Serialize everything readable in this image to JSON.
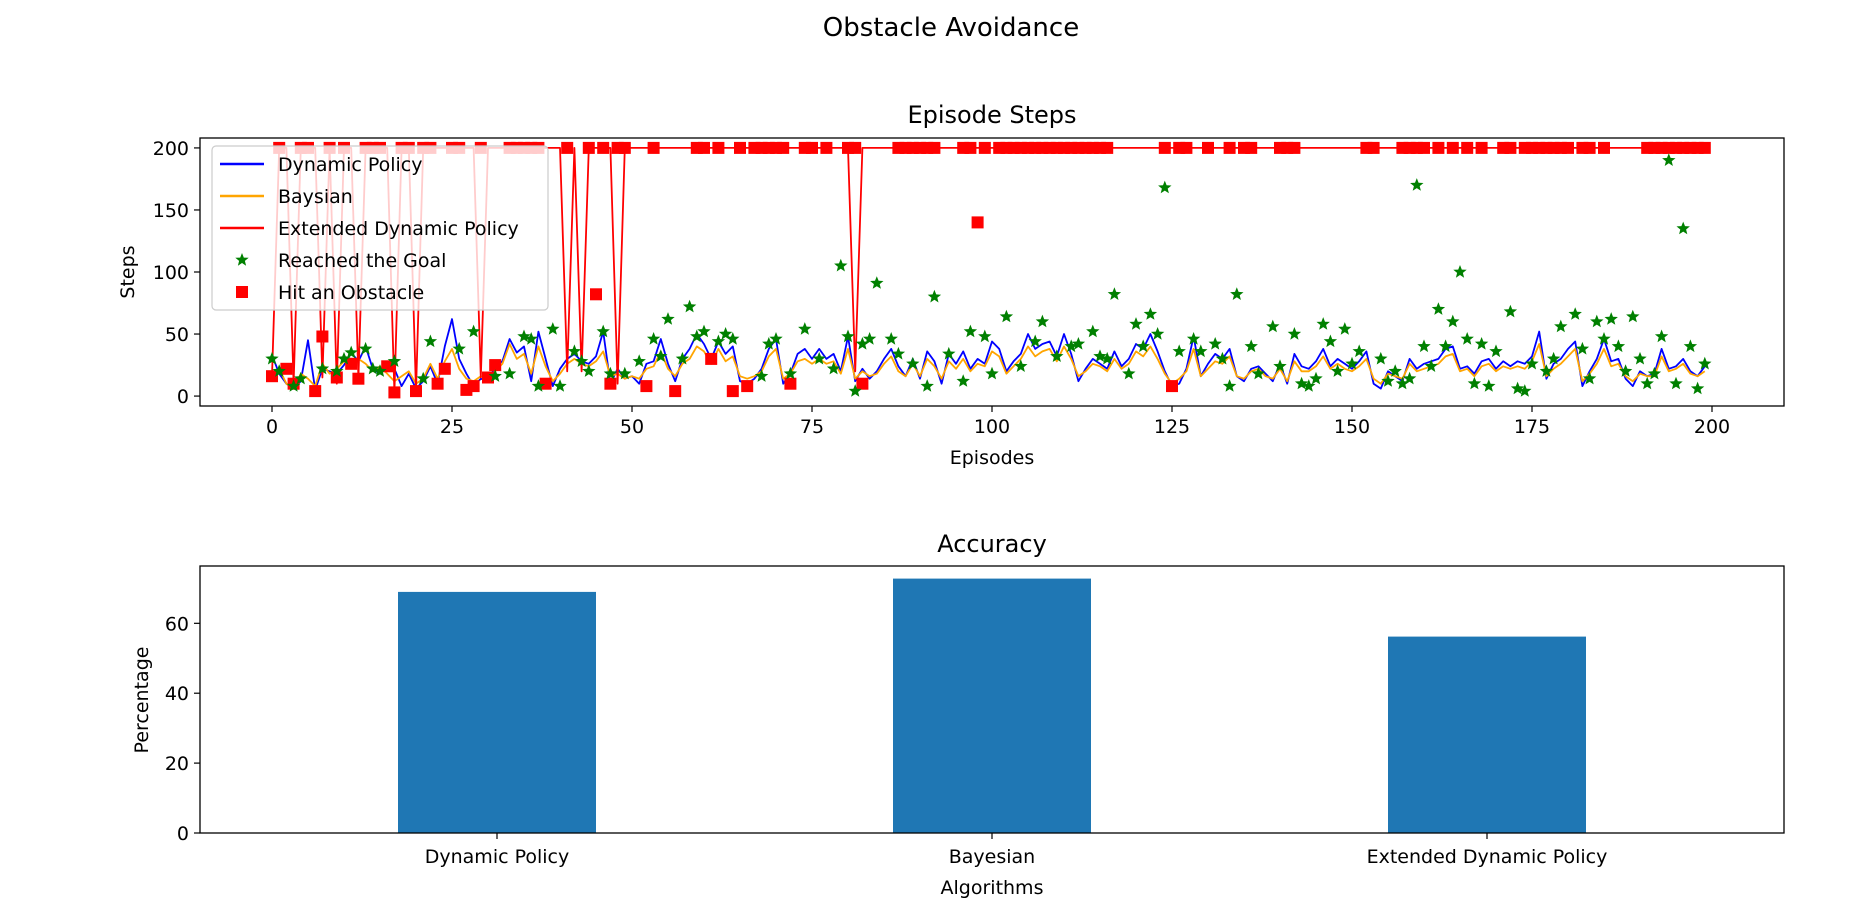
{
  "figure": {
    "suptitle": "Obstacle Avoidance"
  },
  "chart_data": [
    {
      "type": "line",
      "title": "Episode Steps",
      "xlabel": "Episodes",
      "ylabel": "Steps",
      "xlim": [
        -10,
        210
      ],
      "ylim": [
        -8,
        208
      ],
      "xticks": [
        0,
        25,
        50,
        75,
        100,
        125,
        150,
        175,
        200
      ],
      "yticks": [
        0,
        50,
        100,
        150,
        200
      ],
      "grid": false,
      "legend_position": "top-left",
      "legend": [
        {
          "label": "Dynamic Policy",
          "kind": "line",
          "color": "#0000ff"
        },
        {
          "label": "Baysian",
          "kind": "line",
          "color": "#ffa500"
        },
        {
          "label": "Extended Dynamic Policy",
          "kind": "line",
          "color": "#ff0000"
        },
        {
          "label": "Reached the Goal",
          "kind": "star",
          "color": "#008000"
        },
        {
          "label": "Hit an Obstacle",
          "kind": "square",
          "color": "#ff0000"
        }
      ],
      "series": [
        {
          "name": "Dynamic Policy",
          "color": "#0000ff",
          "values": [
            33,
            18,
            10,
            6,
            12,
            45,
            5,
            22,
            20,
            18,
            25,
            35,
            28,
            40,
            22,
            18,
            26,
            22,
            8,
            18,
            6,
            12,
            24,
            10,
            40,
            62,
            30,
            18,
            8,
            14,
            12,
            24,
            28,
            46,
            35,
            40,
            12,
            52,
            30,
            8,
            22,
            30,
            34,
            28,
            26,
            32,
            52,
            10,
            22,
            14,
            16,
            10,
            26,
            28,
            46,
            26,
            12,
            30,
            38,
            50,
            42,
            30,
            44,
            34,
            40,
            12,
            10,
            14,
            22,
            38,
            46,
            10,
            18,
            34,
            38,
            30,
            38,
            30,
            34,
            20,
            48,
            12,
            22,
            14,
            20,
            30,
            38,
            24,
            16,
            30,
            14,
            36,
            28,
            10,
            34,
            26,
            36,
            22,
            30,
            26,
            44,
            38,
            20,
            28,
            34,
            50,
            38,
            42,
            44,
            32,
            50,
            34,
            12,
            22,
            30,
            26,
            22,
            36,
            24,
            30,
            42,
            38,
            50,
            36,
            20,
            8,
            10,
            22,
            48,
            16,
            26,
            34,
            30,
            38,
            16,
            12,
            22,
            24,
            18,
            12,
            26,
            10,
            34,
            24,
            22,
            28,
            38,
            24,
            30,
            26,
            22,
            28,
            36,
            10,
            6,
            20,
            16,
            12,
            30,
            22,
            26,
            28,
            30,
            38,
            40,
            22,
            24,
            18,
            28,
            30,
            22,
            28,
            24,
            28,
            26,
            32,
            52,
            14,
            26,
            30,
            38,
            44,
            8,
            20,
            30,
            46,
            28,
            30,
            14,
            8,
            20,
            16,
            18,
            38,
            22,
            24,
            30,
            20,
            16,
            24
          ]
        },
        {
          "name": "Baysian",
          "color": "#ffa500",
          "values": [
            15,
            22,
            10,
            6,
            18,
            14,
            8,
            26,
            18,
            22,
            28,
            24,
            30,
            26,
            20,
            24,
            18,
            12,
            16,
            20,
            10,
            14,
            26,
            14,
            28,
            38,
            22,
            14,
            12,
            16,
            14,
            20,
            26,
            42,
            30,
            34,
            18,
            40,
            24,
            12,
            18,
            26,
            30,
            26,
            24,
            28,
            36,
            16,
            18,
            14,
            16,
            14,
            22,
            24,
            36,
            22,
            16,
            26,
            30,
            40,
            36,
            26,
            38,
            28,
            32,
            16,
            14,
            16,
            20,
            32,
            38,
            14,
            18,
            28,
            30,
            26,
            30,
            26,
            28,
            18,
            38,
            14,
            20,
            16,
            18,
            26,
            32,
            20,
            16,
            26,
            16,
            30,
            24,
            14,
            28,
            22,
            30,
            20,
            26,
            24,
            36,
            32,
            18,
            24,
            30,
            40,
            32,
            36,
            38,
            28,
            40,
            30,
            16,
            20,
            26,
            24,
            20,
            30,
            22,
            26,
            36,
            32,
            40,
            30,
            18,
            10,
            14,
            20,
            38,
            16,
            22,
            28,
            26,
            32,
            16,
            14,
            20,
            22,
            16,
            14,
            22,
            12,
            28,
            20,
            20,
            24,
            32,
            22,
            26,
            22,
            20,
            24,
            30,
            14,
            10,
            18,
            16,
            14,
            26,
            20,
            22,
            24,
            26,
            32,
            34,
            20,
            22,
            16,
            24,
            26,
            20,
            24,
            22,
            24,
            22,
            28,
            42,
            16,
            22,
            26,
            32,
            38,
            12,
            18,
            26,
            38,
            24,
            26,
            16,
            12,
            18,
            16,
            16,
            32,
            20,
            22,
            26,
            18,
            16,
            20
          ]
        },
        {
          "name": "Extended Dynamic Policy",
          "color": "#ff0000",
          "values": [
            16,
            200,
            200,
            10,
            200,
            200,
            200,
            15,
            200,
            10,
            200,
            200,
            15,
            200,
            200,
            200,
            200,
            3,
            200,
            200,
            4,
            200,
            200,
            200,
            200,
            200,
            200,
            200,
            200,
            15,
            200,
            200,
            200,
            200,
            200,
            200,
            200,
            200,
            200,
            200,
            200,
            20,
            200,
            20,
            200,
            200,
            200,
            200,
            10,
            200,
            200,
            200,
            200,
            200,
            200,
            200,
            200,
            200,
            200,
            200,
            200,
            200,
            200,
            200,
            200,
            200,
            200,
            200,
            200,
            200,
            200,
            200,
            200,
            200,
            200,
            200,
            200,
            200,
            200,
            200,
            200,
            20,
            200,
            200,
            200,
            200,
            200,
            200,
            200,
            200,
            200,
            200,
            200,
            200,
            200,
            200,
            200,
            200,
            200,
            200,
            200,
            200,
            200,
            200,
            200,
            200,
            200,
            200,
            200,
            200,
            200,
            200,
            200,
            200,
            200,
            200,
            200,
            200,
            200,
            200,
            200,
            200,
            200,
            200,
            200,
            200,
            200,
            200,
            200,
            200,
            200,
            200,
            200,
            200,
            200,
            200,
            200,
            200,
            200,
            200,
            200,
            200,
            200,
            200,
            200,
            200,
            200,
            200,
            200,
            200,
            200,
            200,
            200,
            200,
            200,
            200,
            200,
            200,
            200,
            200,
            200,
            200,
            200,
            200,
            200,
            200,
            200,
            200,
            200,
            200,
            200,
            200,
            200,
            200,
            200,
            200,
            200,
            200,
            200,
            200,
            200,
            200,
            200,
            200,
            200,
            200,
            200,
            200,
            200,
            200,
            200,
            200,
            200,
            200,
            200,
            200,
            200,
            200,
            200,
            200
          ]
        }
      ],
      "reached_goal_x": [
        0,
        1,
        3,
        4,
        7,
        9,
        10,
        11,
        13,
        14,
        15,
        17,
        21,
        22,
        26,
        28,
        31,
        33,
        35,
        36,
        37,
        39,
        40,
        42,
        43,
        44,
        46,
        47,
        49,
        51,
        53,
        54,
        55,
        57,
        58,
        59,
        60,
        62,
        63,
        64,
        68,
        69,
        70,
        72,
        74,
        76,
        78,
        79,
        80,
        81,
        82,
        83,
        84,
        86,
        87,
        89,
        91,
        92,
        94,
        96,
        97,
        99,
        100,
        102,
        104,
        106,
        107,
        109,
        111,
        112,
        114,
        115,
        116,
        117,
        119,
        120,
        121,
        122,
        123,
        124,
        126,
        128,
        129,
        131,
        132,
        133,
        134,
        136,
        137,
        139,
        140,
        142,
        143,
        144,
        145,
        146,
        147,
        148,
        149,
        150,
        151,
        154,
        155,
        156,
        157,
        158,
        159,
        160,
        161,
        162,
        163,
        164,
        165,
        166,
        167,
        168,
        169,
        170,
        172,
        173,
        174,
        175,
        177,
        178,
        179,
        181,
        182,
        183,
        184,
        185,
        186,
        187,
        188,
        189,
        190,
        191,
        192,
        193,
        194,
        195,
        196,
        197,
        198,
        199
      ],
      "reached_goal_y": [
        30,
        20,
        8,
        14,
        22,
        20,
        30,
        35,
        38,
        22,
        20,
        28,
        14,
        44,
        38,
        52,
        16,
        18,
        48,
        46,
        8,
        54,
        8,
        36,
        28,
        20,
        52,
        18,
        18,
        28,
        46,
        32,
        62,
        30,
        72,
        48,
        52,
        44,
        50,
        46,
        16,
        42,
        46,
        18,
        54,
        30,
        22,
        105,
        48,
        4,
        42,
        46,
        91,
        46,
        34,
        26,
        8,
        80,
        34,
        12,
        52,
        48,
        18,
        64,
        24,
        44,
        60,
        32,
        40,
        42,
        52,
        32,
        30,
        82,
        18,
        58,
        40,
        66,
        50,
        168,
        36,
        46,
        36,
        42,
        30,
        8,
        82,
        40,
        18,
        56,
        24,
        50,
        10,
        8,
        14,
        58,
        44,
        20,
        54,
        26,
        36,
        30,
        12,
        20,
        10,
        14,
        170,
        40,
        24,
        70,
        40,
        60,
        100,
        46,
        10,
        42,
        8,
        36,
        68,
        6,
        4,
        26,
        20,
        30,
        56,
        66,
        38,
        14,
        60,
        46,
        62,
        40,
        20,
        64,
        30,
        10,
        18,
        48,
        190,
        10,
        135,
        40,
        6,
        26
      ],
      "hit_obstacle_x": [
        0,
        1,
        2,
        3,
        4,
        5,
        6,
        7,
        8,
        9,
        10,
        11,
        12,
        13,
        14,
        15,
        16,
        17,
        18,
        19,
        20,
        21,
        22,
        23,
        24,
        25,
        26,
        27,
        28,
        29,
        30,
        31,
        33,
        34,
        35,
        36,
        37,
        38,
        41,
        44,
        45,
        46,
        47,
        48,
        49,
        52,
        53,
        56,
        59,
        60,
        61,
        62,
        64,
        65,
        66,
        67,
        68,
        69,
        70,
        71,
        72,
        74,
        75,
        77,
        80,
        81,
        82,
        87,
        88,
        89,
        90,
        91,
        92,
        96,
        97,
        98,
        99,
        101,
        102,
        103,
        104,
        105,
        106,
        107,
        108,
        109,
        110,
        111,
        112,
        113,
        114,
        115,
        116,
        124,
        125,
        126,
        127,
        130,
        133,
        135,
        136,
        140,
        141,
        142,
        152,
        153,
        157,
        158,
        159,
        160,
        162,
        164,
        166,
        168,
        171,
        172,
        174,
        175,
        176,
        177,
        178,
        179,
        180,
        182,
        183,
        185,
        191,
        192,
        193,
        194,
        195,
        196,
        197,
        198,
        199
      ],
      "hit_obstacle_y": [
        16,
        200,
        22,
        10,
        200,
        200,
        4,
        48,
        200,
        15,
        200,
        26,
        14,
        200,
        200,
        200,
        24,
        3,
        200,
        200,
        4,
        200,
        200,
        10,
        22,
        200,
        200,
        5,
        8,
        200,
        15,
        25,
        200,
        200,
        200,
        200,
        200,
        10,
        200,
        200,
        82,
        200,
        10,
        200,
        200,
        8,
        200,
        4,
        200,
        200,
        30,
        200,
        4,
        200,
        8,
        200,
        200,
        200,
        200,
        200,
        10,
        200,
        200,
        200,
        200,
        200,
        10,
        200,
        200,
        200,
        200,
        200,
        200,
        200,
        200,
        140,
        200,
        200,
        200,
        200,
        200,
        200,
        200,
        200,
        200,
        200,
        200,
        200,
        200,
        200,
        200,
        200,
        200,
        200,
        8,
        200,
        200,
        200,
        200,
        200,
        200,
        200,
        200,
        200,
        200,
        200,
        200,
        200,
        200,
        200,
        200,
        200,
        200,
        200,
        200,
        200,
        200,
        200,
        200,
        200,
        200,
        200,
        200,
        200,
        200,
        200,
        200,
        200,
        200,
        200,
        200,
        200,
        200,
        200,
        200
      ]
    },
    {
      "type": "bar",
      "title": "Accuracy",
      "xlabel": "Algorithms",
      "ylabel": "Percentage",
      "categories": [
        "Dynamic Policy",
        "Bayesian",
        "Extended Dynamic Policy"
      ],
      "values": [
        69,
        72.8,
        56.2
      ],
      "ylim": [
        0,
        76.4
      ],
      "yticks": [
        0,
        20,
        40,
        60
      ],
      "color": "#1f77b4",
      "grid": false
    }
  ]
}
